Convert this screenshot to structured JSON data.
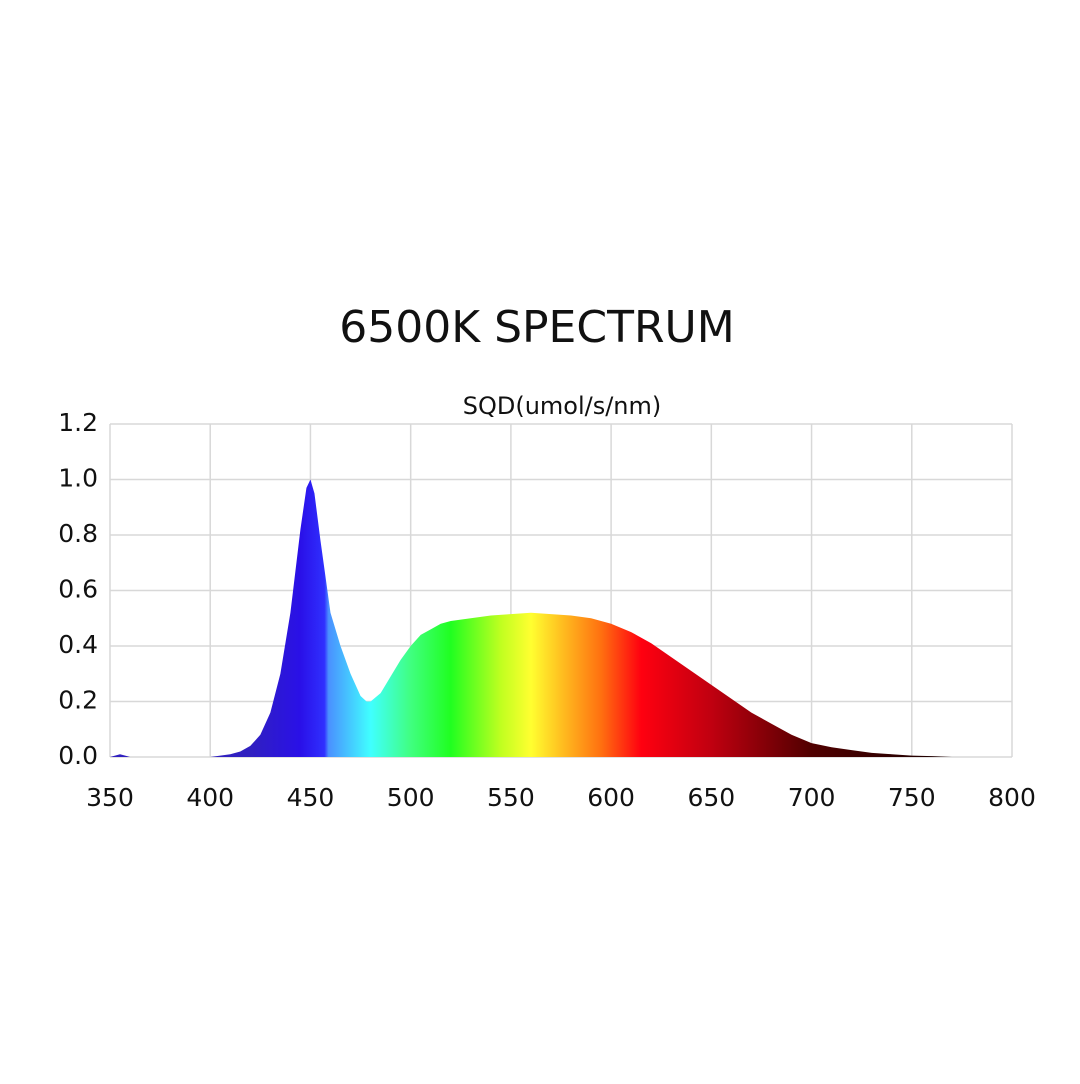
{
  "chart_data": {
    "type": "area",
    "title": "6500K SPECTRUM",
    "y_label": "SQD(umol/s/nm)",
    "x": [
      350,
      355,
      360,
      370,
      380,
      390,
      400,
      405,
      410,
      415,
      420,
      425,
      430,
      435,
      440,
      445,
      448,
      450,
      452,
      455,
      460,
      465,
      470,
      475,
      478,
      480,
      485,
      490,
      495,
      500,
      505,
      510,
      515,
      520,
      530,
      540,
      550,
      560,
      570,
      580,
      590,
      600,
      610,
      620,
      630,
      640,
      650,
      660,
      670,
      680,
      690,
      700,
      710,
      720,
      730,
      740,
      750,
      760,
      770,
      780,
      790,
      800
    ],
    "values": [
      0,
      0.01,
      0,
      0,
      0,
      0,
      0,
      0.005,
      0.01,
      0.02,
      0.04,
      0.08,
      0.16,
      0.3,
      0.52,
      0.82,
      0.97,
      1.0,
      0.95,
      0.78,
      0.52,
      0.4,
      0.3,
      0.22,
      0.2,
      0.2,
      0.23,
      0.29,
      0.35,
      0.4,
      0.44,
      0.46,
      0.48,
      0.49,
      0.5,
      0.51,
      0.515,
      0.52,
      0.515,
      0.51,
      0.5,
      0.48,
      0.45,
      0.41,
      0.36,
      0.31,
      0.26,
      0.21,
      0.16,
      0.12,
      0.08,
      0.05,
      0.035,
      0.025,
      0.015,
      0.01,
      0.005,
      0.003,
      0,
      0,
      0,
      0
    ],
    "color_stops": [
      [
        420,
        "#3020c0"
      ],
      [
        445,
        "#2a10e8"
      ],
      [
        457,
        "#3030ff"
      ],
      [
        459,
        "#4a90ff"
      ],
      [
        480,
        "#40ffff"
      ],
      [
        500,
        "#40ff80"
      ],
      [
        520,
        "#20ff20"
      ],
      [
        545,
        "#c0ff20"
      ],
      [
        560,
        "#ffff30"
      ],
      [
        575,
        "#ffc020"
      ],
      [
        595,
        "#ff7010"
      ],
      [
        615,
        "#ff0010"
      ],
      [
        650,
        "#c00010"
      ],
      [
        700,
        "#500000"
      ],
      [
        760,
        "#200000"
      ]
    ],
    "xlim": [
      350,
      800
    ],
    "xticks": [
      350,
      400,
      450,
      500,
      550,
      600,
      650,
      700,
      750,
      800
    ],
    "ylim": [
      0,
      1.2
    ],
    "yticks": [
      {
        "value": 0,
        "label": "0.0"
      },
      0.2,
      0.4,
      0.6,
      0.8,
      {
        "value": 1,
        "label": "1.0"
      },
      1.2
    ],
    "grid": true
  }
}
